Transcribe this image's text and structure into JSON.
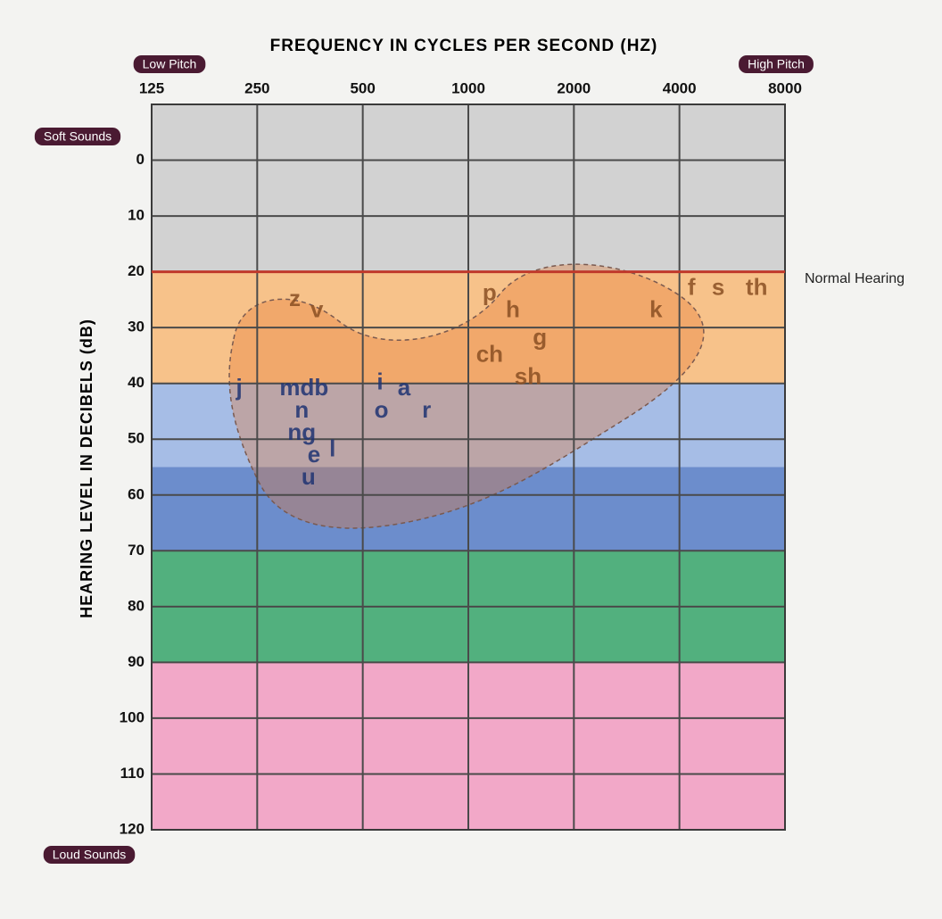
{
  "chart_data": {
    "type": "audiogram",
    "title": "FREQUENCY IN CYCLES PER SECOND (HZ)",
    "y_label": "HEARING LEVEL IN DECIBELS (dB)",
    "xscale": "log",
    "xlim": [
      125,
      8000
    ],
    "xticks": [
      125,
      250,
      500,
      1000,
      2000,
      4000,
      8000
    ],
    "ylim": [
      -10,
      120
    ],
    "yticks": [
      0,
      10,
      20,
      30,
      40,
      50,
      60,
      70,
      80,
      90,
      100,
      110,
      120
    ],
    "y_inverted": true,
    "grid": true,
    "bands": [
      {
        "from": -10,
        "to": 20,
        "color": "#d2d2d2",
        "text_color": "#6a6a6a"
      },
      {
        "from": 20,
        "to": 40,
        "color": "#f7c28a",
        "text_color": "#8a4f22"
      },
      {
        "from": 40,
        "to": 55,
        "color": "#a6bde6",
        "text_color": "#1f3272"
      },
      {
        "from": 55,
        "to": 70,
        "color": "#6c8dcc",
        "text_color": "#1f3272"
      },
      {
        "from": 70,
        "to": 90,
        "color": "#52b07e",
        "text_color": "#1d5a3a"
      },
      {
        "from": 90,
        "to": 120,
        "color": "#f2a8c8",
        "text_color": "#7a2a50"
      }
    ],
    "normal_hearing": {
      "label": "Normal Hearing",
      "level": 20,
      "color": "#c0392b"
    },
    "low_pitch": "Low Pitch",
    "high_pitch": "High Pitch",
    "soft_sounds": "Soft Sounds",
    "loud_sounds": "Loud Sounds",
    "sounds": [
      {
        "label": "z",
        "x": 320,
        "y": 25
      },
      {
        "label": "v",
        "x": 370,
        "y": 27
      },
      {
        "label": "p",
        "x": 1150,
        "y": 24
      },
      {
        "label": "h",
        "x": 1340,
        "y": 27
      },
      {
        "label": "g",
        "x": 1600,
        "y": 32
      },
      {
        "label": "k",
        "x": 3430,
        "y": 27
      },
      {
        "label": "f",
        "x": 4330,
        "y": 23
      },
      {
        "label": "s",
        "x": 5160,
        "y": 23
      },
      {
        "label": "th",
        "x": 6640,
        "y": 23
      },
      {
        "label": "ch",
        "x": 1150,
        "y": 35
      },
      {
        "label": "sh",
        "x": 1480,
        "y": 39
      },
      {
        "label": "j",
        "x": 222,
        "y": 41
      },
      {
        "label": "mdb",
        "x": 340,
        "y": 41
      },
      {
        "label": "i",
        "x": 560,
        "y": 40
      },
      {
        "label": "a",
        "x": 656,
        "y": 41
      },
      {
        "label": "n",
        "x": 335,
        "y": 45
      },
      {
        "label": "o",
        "x": 565,
        "y": 45
      },
      {
        "label": "r",
        "x": 760,
        "y": 45
      },
      {
        "label": "ng",
        "x": 335,
        "y": 49
      },
      {
        "label": "e",
        "x": 363,
        "y": 53
      },
      {
        "label": "l",
        "x": 410,
        "y": 52
      },
      {
        "label": "u",
        "x": 350,
        "y": 57
      }
    ]
  }
}
